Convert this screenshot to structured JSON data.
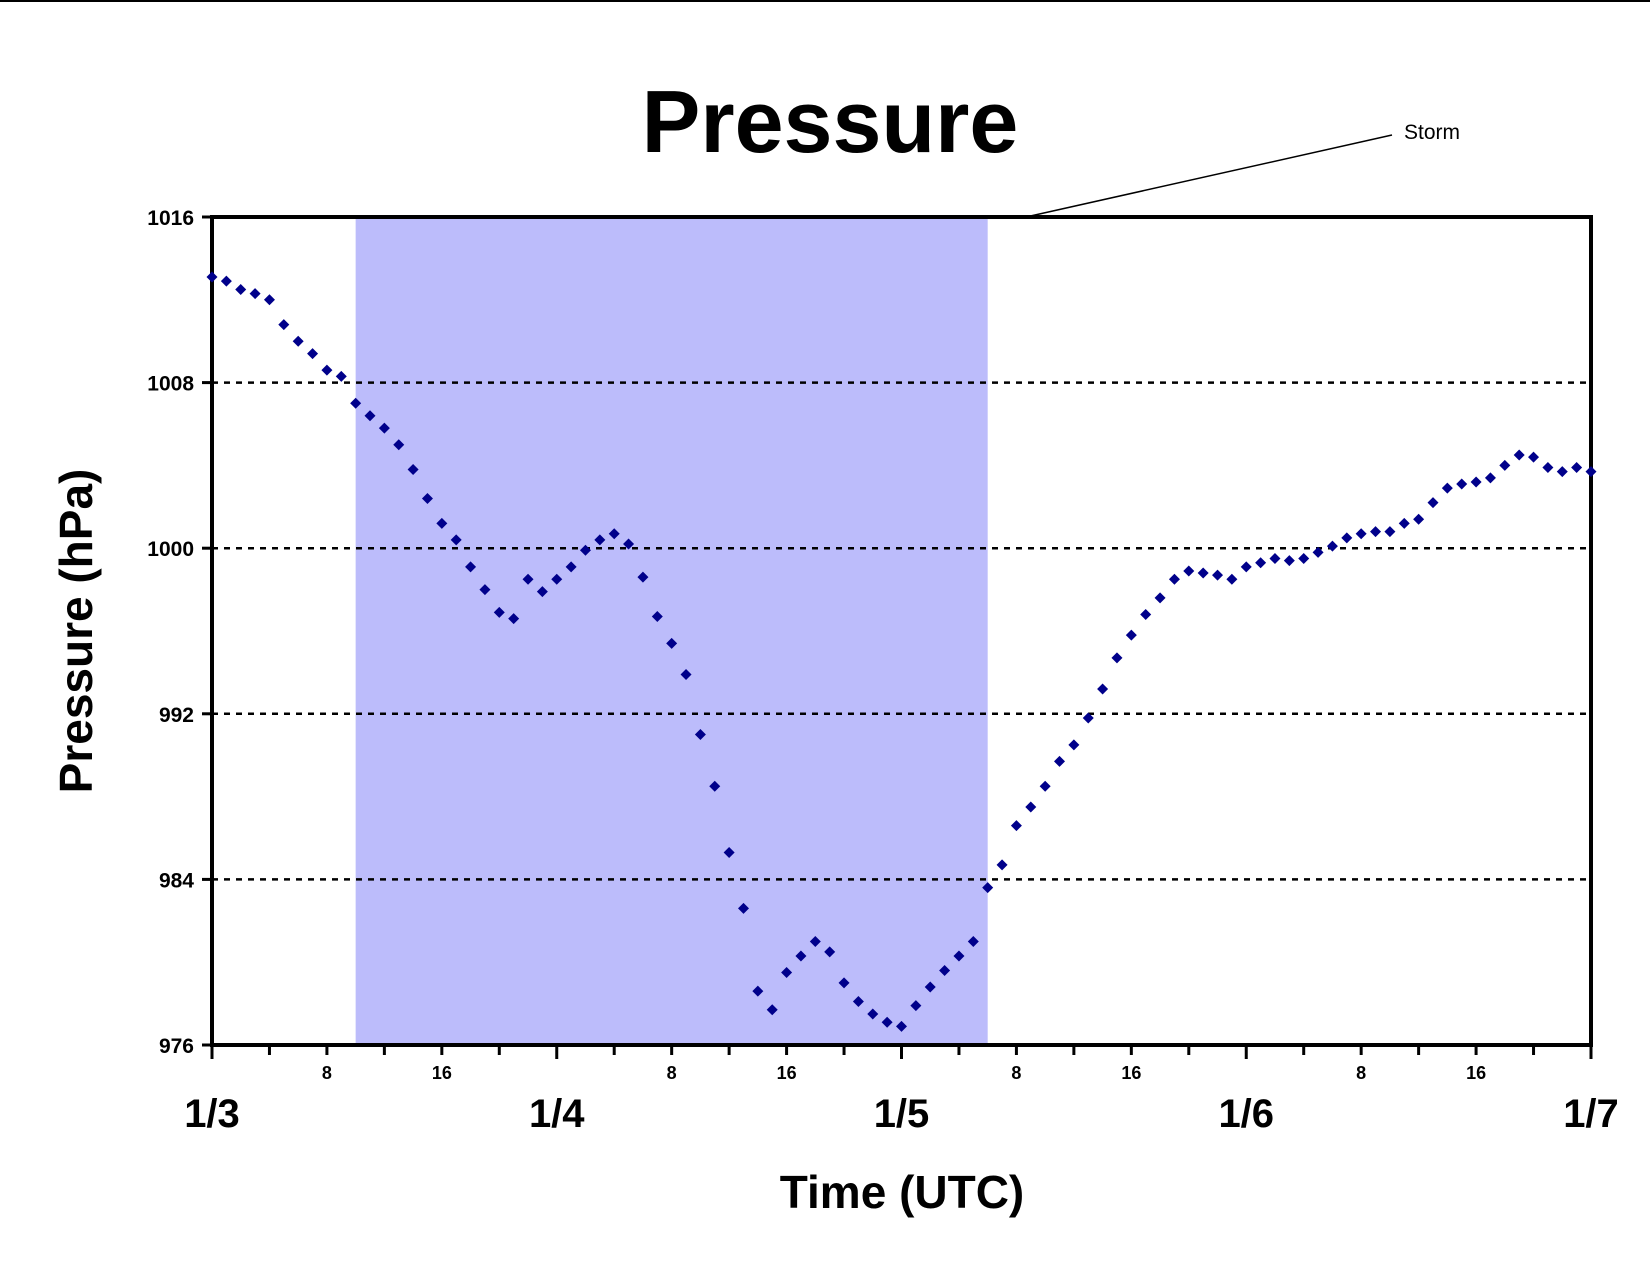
{
  "chart_data": {
    "type": "scatter",
    "title": "Pressure",
    "xlabel": "Time (UTC)",
    "ylabel": "Pressure (hPa)",
    "ylim": [
      976,
      1016
    ],
    "yticks": [
      "976",
      "984",
      "992",
      "1000",
      "1008",
      "1016"
    ],
    "x_unit": "hours since 1/3 00 UTC",
    "xlim": [
      0,
      96
    ],
    "day_labels": [
      "1/3",
      "1/4",
      "1/5",
      "1/6",
      "1/7"
    ],
    "hour_labels": [
      "8",
      "16"
    ],
    "grid": "horizontal dotted",
    "annotation": {
      "text": "Storm",
      "x_start": 10,
      "x_end": 54
    },
    "storm_colour": "#bcbcfb",
    "marker_colour": "#00008b",
    "points": [
      [
        0,
        1013.1
      ],
      [
        1,
        1012.9
      ],
      [
        2,
        1012.5
      ],
      [
        3,
        1012.3
      ],
      [
        4,
        1012.0
      ],
      [
        5,
        1010.8
      ],
      [
        6,
        1010.0
      ],
      [
        7,
        1009.4
      ],
      [
        8,
        1008.6
      ],
      [
        9,
        1008.3
      ],
      [
        10,
        1007.0
      ],
      [
        11,
        1006.4
      ],
      [
        12,
        1005.8
      ],
      [
        13,
        1005.0
      ],
      [
        14,
        1003.8
      ],
      [
        15,
        1002.4
      ],
      [
        16,
        1001.2
      ],
      [
        17,
        1000.4
      ],
      [
        18,
        999.1
      ],
      [
        19,
        998.0
      ],
      [
        20,
        996.9
      ],
      [
        21,
        996.6
      ],
      [
        22,
        998.5
      ],
      [
        23,
        997.9
      ],
      [
        24,
        998.5
      ],
      [
        25,
        999.1
      ],
      [
        26,
        999.9
      ],
      [
        27,
        1000.4
      ],
      [
        28,
        1000.7
      ],
      [
        29,
        1000.2
      ],
      [
        30,
        998.6
      ],
      [
        31,
        996.7
      ],
      [
        32,
        995.4
      ],
      [
        33,
        993.9
      ],
      [
        34,
        991.0
      ],
      [
        35,
        988.5
      ],
      [
        36,
        985.3
      ],
      [
        37,
        982.6
      ],
      [
        38,
        978.6
      ],
      [
        39,
        977.7
      ],
      [
        40,
        979.5
      ],
      [
        41,
        980.3
      ],
      [
        42,
        981.0
      ],
      [
        43,
        980.5
      ],
      [
        44,
        979.0
      ],
      [
        45,
        978.1
      ],
      [
        46,
        977.5
      ],
      [
        47,
        977.1
      ],
      [
        48,
        976.9
      ],
      [
        49,
        977.9
      ],
      [
        50,
        978.8
      ],
      [
        51,
        979.6
      ],
      [
        52,
        980.3
      ],
      [
        53,
        981.0
      ],
      [
        54,
        983.6
      ],
      [
        55,
        984.7
      ],
      [
        56,
        986.6
      ],
      [
        57,
        987.5
      ],
      [
        58,
        988.5
      ],
      [
        59,
        989.7
      ],
      [
        60,
        990.5
      ],
      [
        61,
        991.8
      ],
      [
        62,
        993.2
      ],
      [
        63,
        994.7
      ],
      [
        64,
        995.8
      ],
      [
        65,
        996.8
      ],
      [
        66,
        997.6
      ],
      [
        67,
        998.5
      ],
      [
        68,
        998.9
      ],
      [
        69,
        998.8
      ],
      [
        70,
        998.7
      ],
      [
        71,
        998.5
      ],
      [
        72,
        999.1
      ],
      [
        73,
        999.3
      ],
      [
        74,
        999.5
      ],
      [
        75,
        999.4
      ],
      [
        76,
        999.5
      ],
      [
        77,
        999.8
      ],
      [
        78,
        1000.1
      ],
      [
        79,
        1000.5
      ],
      [
        80,
        1000.7
      ],
      [
        81,
        1000.8
      ],
      [
        82,
        1000.8
      ],
      [
        83,
        1001.2
      ],
      [
        84,
        1001.4
      ],
      [
        85,
        1002.2
      ],
      [
        86,
        1002.9
      ],
      [
        87,
        1003.1
      ],
      [
        88,
        1003.2
      ],
      [
        89,
        1003.4
      ],
      [
        90,
        1004.0
      ],
      [
        91,
        1004.5
      ],
      [
        92,
        1004.4
      ],
      [
        93,
        1003.9
      ],
      [
        94,
        1003.7
      ],
      [
        95,
        1003.9
      ],
      [
        96,
        1003.7
      ]
    ]
  }
}
